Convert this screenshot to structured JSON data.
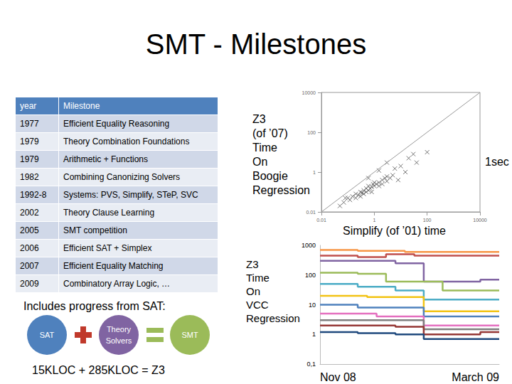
{
  "title": "SMT - Milestones",
  "table": {
    "header": [
      "year",
      "Milestone"
    ],
    "rows": [
      [
        "1977",
        "Efficient Equality Reasoning"
      ],
      [
        "1979",
        "Theory Combination Foundations"
      ],
      [
        "1979",
        "Arithmetic + Functions"
      ],
      [
        "1982",
        "Combining Canonizing Solvers"
      ],
      [
        "1992-8",
        "Systems: PVS, Simplify, STeP, SVC"
      ],
      [
        "2002",
        "Theory Clause Learning"
      ],
      [
        "2005",
        "SMT competition"
      ],
      [
        "2006",
        "Efficient SAT + Simplex"
      ],
      [
        "2007",
        "Efficient Equality Matching"
      ],
      [
        "2009",
        "Combinatory Array Logic, …"
      ]
    ]
  },
  "sat_note": "Includes progress from SAT:",
  "equation": {
    "parts": [
      [
        "SAT"
      ],
      [
        "Theory",
        "Solvers"
      ],
      [
        "SMT"
      ]
    ]
  },
  "kloc": "15KLOC + 285KLOC = Z3",
  "chart_data": [
    {
      "type": "scatter",
      "y_label": [
        "Z3",
        "(of ’07)",
        "Time",
        "On",
        "Boogie",
        "Regression"
      ],
      "x_label": "Simplify (of ’01) time",
      "annotation": "1sec",
      "log": true,
      "xlim": [
        0.01,
        10000
      ],
      "ylim": [
        0.01,
        10000
      ],
      "xticks": [
        0.01,
        1,
        100,
        10000
      ],
      "yticks": [
        0.01,
        1,
        100,
        10000
      ],
      "series": [
        {
          "type": "scatter",
          "marker": "x",
          "color": "#555555",
          "x": [
            0.1,
            0.12,
            0.15,
            0.2,
            0.2,
            0.25,
            0.3,
            0.3,
            0.35,
            0.4,
            0.4,
            0.5,
            0.5,
            0.6,
            0.6,
            0.7,
            0.8,
            0.8,
            0.9,
            1,
            1,
            1.2,
            1.5,
            1.5,
            2,
            2,
            2.5,
            3,
            3,
            4,
            5,
            0.07,
            0.08,
            0.05,
            6,
            10,
            15,
            8,
            20,
            40,
            1.5,
            0.6,
            30,
            100,
            3
          ],
          "values": [
            0.05,
            0.04,
            0.06,
            0.05,
            0.08,
            0.07,
            0.06,
            0.1,
            0.09,
            0.08,
            0.12,
            0.1,
            0.15,
            0.12,
            0.2,
            0.15,
            0.18,
            0.1,
            0.25,
            0.2,
            0.3,
            0.25,
            0.3,
            0.2,
            0.4,
            0.25,
            0.5,
            0.35,
            0.6,
            0.5,
            0.7,
            0.03,
            0.05,
            0.02,
            1.5,
            2,
            1,
            0.4,
            5,
            3,
            1.2,
            0.5,
            8,
            10,
            3
          ]
        },
        {
          "type": "line",
          "color": "#999999",
          "x": [
            0.01,
            10000
          ],
          "values": [
            0.01,
            10000
          ]
        }
      ]
    },
    {
      "type": "line",
      "y_label": [
        "Z3",
        "Time",
        "On",
        "VCC",
        "Regression"
      ],
      "log": "y",
      "ylim": [
        0.1,
        1000
      ],
      "yticks": [
        {
          "value": 0.1,
          "label": "0,1"
        },
        1,
        10,
        100,
        1000
      ],
      "categories": [
        "Nov 08",
        null,
        null,
        null,
        null,
        null,
        null,
        null,
        null,
        null,
        null,
        null,
        null,
        null,
        null,
        null,
        null,
        null,
        null,
        "March 09"
      ],
      "series": [
        {
          "color": "#f79646",
          "values": [
            700,
            700,
            700,
            700,
            650,
            650,
            650,
            650,
            650,
            600,
            600,
            600,
            600,
            600,
            600,
            600,
            600,
            600,
            600,
            600
          ]
        },
        {
          "color": "#c0504d",
          "values": [
            450,
            450,
            450,
            450,
            400,
            400,
            400,
            500,
            500,
            500,
            450,
            450,
            450,
            450,
            450,
            450,
            450,
            450,
            450,
            450
          ]
        },
        {
          "color": "#8064a2",
          "values": [
            300,
            300,
            300,
            300,
            300,
            300,
            300,
            300,
            250,
            250,
            250,
            60,
            60,
            60,
            60,
            60,
            60,
            70,
            70,
            70
          ]
        },
        {
          "color": "#9bbb59",
          "values": [
            120,
            120,
            120,
            120,
            110,
            110,
            110,
            60,
            60,
            60,
            60,
            60,
            60,
            30,
            30,
            30,
            30,
            30,
            30,
            30
          ]
        },
        {
          "color": "#4bacc6",
          "values": [
            50,
            50,
            50,
            50,
            40,
            40,
            40,
            40,
            30,
            30,
            30,
            15,
            15,
            15,
            15,
            15,
            15,
            15,
            15,
            15
          ]
        },
        {
          "color": "#f2c314",
          "values": [
            20,
            20,
            20,
            20,
            20,
            18,
            18,
            18,
            18,
            18,
            18,
            6,
            6,
            6,
            6,
            6,
            6,
            6,
            6,
            6
          ]
        },
        {
          "color": "#4f81bd",
          "values": [
            10,
            10,
            10,
            10,
            8,
            8,
            8,
            8,
            8,
            8,
            8,
            4,
            4,
            4,
            4,
            4,
            4,
            4,
            4,
            4
          ]
        },
        {
          "color": "#e46fbf",
          "values": [
            5,
            5,
            5,
            5,
            5,
            5,
            4,
            4,
            4,
            4,
            4,
            2,
            2,
            2,
            2,
            2,
            2,
            2,
            2,
            2
          ]
        },
        {
          "color": "#7f7f7f",
          "values": [
            3,
            3,
            3,
            3,
            3,
            3,
            3,
            3,
            3,
            3,
            3,
            1.5,
            1.5,
            1.5,
            1.5,
            1.5,
            1.5,
            1.5,
            1.5,
            1.5
          ]
        },
        {
          "color": "#953735",
          "values": [
            2,
            2,
            2,
            2,
            2,
            2,
            2,
            2,
            1.8,
            1.8,
            1.8,
            1,
            1,
            1,
            1,
            1,
            1,
            1.2,
            1.2,
            1.2
          ]
        },
        {
          "color": "#1f497d",
          "values": [
            1.2,
            1.2,
            1.2,
            1.2,
            1.1,
            1.1,
            1.1,
            1.1,
            1,
            1,
            1,
            0.7,
            0.7,
            0.7,
            0.7,
            0.7,
            0.7,
            0.7,
            0.7,
            0.7
          ]
        }
      ]
    }
  ]
}
